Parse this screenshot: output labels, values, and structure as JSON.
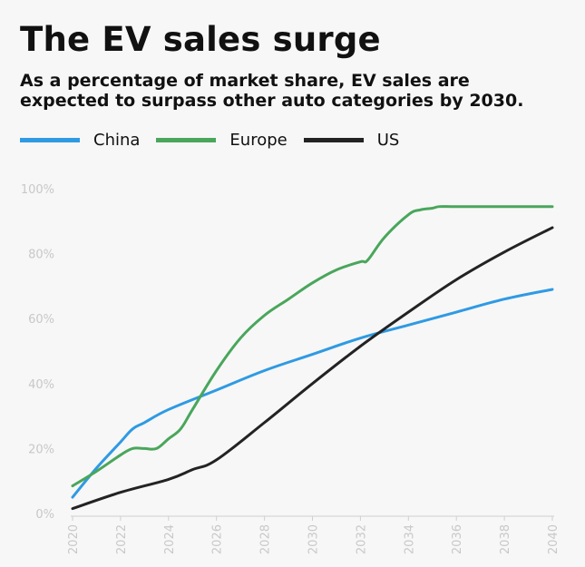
{
  "chart_data": {
    "type": "line",
    "title": "The EV sales surge",
    "subtitle": "As a percentage of market share, EV sales are expected to surpass other auto categories by 2030.",
    "xlabel": "",
    "ylabel": "",
    "xlim": [
      2020,
      2040
    ],
    "ylim": [
      0,
      100
    ],
    "x_ticks": [
      "2020",
      "2022",
      "2024",
      "2026",
      "2028",
      "2030",
      "2032",
      "2034",
      "2036",
      "2038",
      "2040"
    ],
    "y_ticks": [
      "0%",
      "20%",
      "40%",
      "60%",
      "80%",
      "100%"
    ],
    "legend_position": "top-left",
    "series": [
      {
        "name": "China",
        "color": "#2f9ae3",
        "x": [
          2020,
          2021,
          2022,
          2022.5,
          2023,
          2024,
          2026,
          2028,
          2030,
          2032,
          2034,
          2036,
          2038,
          2040
        ],
        "y": [
          5,
          14,
          22,
          26,
          28,
          32,
          38,
          44,
          49,
          54,
          58,
          62,
          66,
          69
        ]
      },
      {
        "name": "Europe",
        "color": "#49a65b",
        "x": [
          2020,
          2021,
          2022,
          2022.5,
          2023,
          2023.5,
          2024,
          2024.5,
          2025,
          2026,
          2027,
          2028,
          2029,
          2030,
          2031,
          2032,
          2032.3,
          2033,
          2034,
          2034.5,
          2035,
          2035.3,
          2036,
          2038,
          2040
        ],
        "y": [
          8.5,
          13,
          18,
          20,
          20,
          20,
          23,
          26,
          32,
          44,
          54,
          61,
          66,
          71,
          75,
          77.5,
          78,
          85,
          92,
          93.5,
          94,
          94.5,
          94.5,
          94.5,
          94.5
        ]
      },
      {
        "name": "US",
        "color": "#232323",
        "x": [
          2020,
          2022,
          2024,
          2025,
          2026,
          2028,
          2030,
          2032,
          2034,
          2036,
          2038,
          2040
        ],
        "y": [
          1.5,
          6.5,
          10.5,
          13.5,
          16.5,
          28,
          40,
          51.5,
          62,
          72,
          80.5,
          88
        ]
      }
    ]
  }
}
